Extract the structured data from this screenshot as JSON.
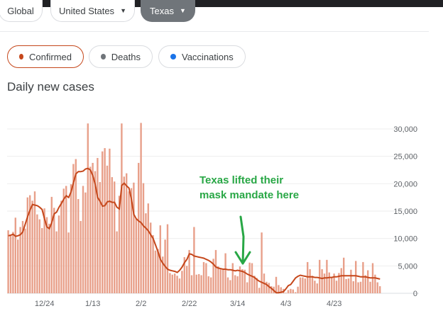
{
  "scope_tabs": [
    {
      "label": "Global"
    },
    {
      "label": "United States"
    },
    {
      "label": "Texas"
    }
  ],
  "metrics": [
    {
      "label": "Confirmed",
      "color": "#c5471b"
    },
    {
      "label": "Deaths",
      "color": "#70757a"
    },
    {
      "label": "Vaccinations",
      "color": "#1a73e8"
    }
  ],
  "annotation": {
    "line1": "Texas lifted their",
    "line2": "mask mandate here",
    "color": "#28a745"
  },
  "chart_data": {
    "type": "bar",
    "title": "Daily new cases",
    "ylim": [
      0,
      30000
    ],
    "y_ticks": [
      "30,000",
      "25,000",
      "20,000",
      "15,000",
      "10,000",
      "5,000",
      "0"
    ],
    "y_tick_values": [
      30000,
      25000,
      20000,
      15000,
      10000,
      5000,
      0
    ],
    "x_ticks": [
      "12/24",
      "1/13",
      "2/2",
      "2/22",
      "3/14",
      "4/3",
      "4/23"
    ],
    "x_tick_index": [
      15,
      35,
      55,
      75,
      95,
      115,
      135
    ],
    "bar_color": "#e8a08a",
    "avg_color": "#c5471b",
    "grid": true,
    "daily_values": [
      11500,
      10500,
      11200,
      13800,
      9800,
      12100,
      13200,
      11800,
      17500,
      17900,
      16900,
      18600,
      14400,
      13500,
      11900,
      15500,
      13900,
      12700,
      17600,
      15600,
      11300,
      14200,
      16900,
      19100,
      19600,
      11100,
      19900,
      23600,
      24500,
      17200,
      13200,
      19600,
      18400,
      31000,
      23100,
      23800,
      22300,
      24700,
      20300,
      25900,
      26500,
      23300,
      26400,
      21200,
      20400,
      11300,
      17800,
      31000,
      21300,
      21900,
      18600,
      19200,
      20200,
      13600,
      23800,
      31100,
      20100,
      14600,
      16400,
      12900,
      10600,
      7800,
      8100,
      12400,
      6700,
      9800,
      12600,
      3700,
      3400,
      3600,
      3200,
      2700,
      4100,
      6600,
      5000,
      7900,
      3300,
      12100,
      3400,
      3500,
      3300,
      5700,
      5500,
      3100,
      2900,
      6300,
      7900,
      4900,
      4500,
      4500,
      7300,
      2900,
      2400,
      5500,
      3300,
      3100,
      4900,
      4400,
      4300,
      2000,
      5600,
      5500,
      3200,
      2800,
      1000,
      11100,
      3600,
      2100,
      1900,
      1300,
      1200,
      3000,
      1500,
      1100,
      800,
      100,
      600,
      800,
      700,
      200,
      1200,
      2900,
      2900,
      2700,
      5700,
      4400,
      3200,
      2300,
      1800,
      6100,
      4400,
      3600,
      6100,
      3800,
      3000,
      3600,
      2300,
      3700,
      4600,
      6500,
      2600,
      2700,
      4300,
      2200,
      5900,
      2000,
      2100,
      5700,
      3300,
      4200,
      2100,
      5500,
      3400,
      2000,
      1300
    ],
    "avg_series": [
      10500,
      10600,
      10800,
      10400,
      10500,
      10700,
      11200,
      12600,
      14000,
      15200,
      16200,
      16100,
      16000,
      15700,
      15300,
      13600,
      12100,
      11800,
      12900,
      14500,
      14800,
      15700,
      16400,
      17200,
      17800,
      17500,
      18500,
      20200,
      21800,
      22200,
      22200,
      22300,
      22700,
      22800,
      22500,
      21500,
      19900,
      17500,
      16800,
      15900,
      16000,
      16700,
      16800,
      16600,
      16600,
      15700,
      15400,
      19700,
      20100,
      19600,
      19200,
      17200,
      14400,
      13600,
      13200,
      12900,
      12300,
      11900,
      11400,
      10700,
      10000,
      8800,
      7600,
      6200,
      5500,
      4900,
      4400,
      4200,
      4100,
      4000,
      3800,
      4200,
      4800,
      5600,
      6200,
      7200,
      7100,
      6800,
      6700,
      6600,
      6500,
      6400,
      6200,
      6000,
      5700,
      5300,
      4800,
      4600,
      4500,
      4400,
      4400,
      4300,
      4300,
      4200,
      4100,
      4200,
      4100,
      4000,
      3800,
      3500,
      3300,
      3100,
      2900,
      2500,
      2200,
      2000,
      1800,
      1600,
      1200,
      900,
      500,
      100,
      100,
      200,
      300,
      800,
      1400,
      1600,
      2200,
      2800,
      3100,
      3300,
      3200,
      3100,
      3000,
      3000,
      3000,
      2900,
      2900,
      2800,
      2700,
      2800,
      2800,
      2900,
      2900,
      3000,
      3000,
      3100,
      3200,
      3200,
      3200,
      3200,
      3200,
      3200,
      3200,
      3100,
      3000,
      3000,
      3000,
      2900,
      2800,
      2800,
      2800,
      2700,
      2600
    ]
  }
}
